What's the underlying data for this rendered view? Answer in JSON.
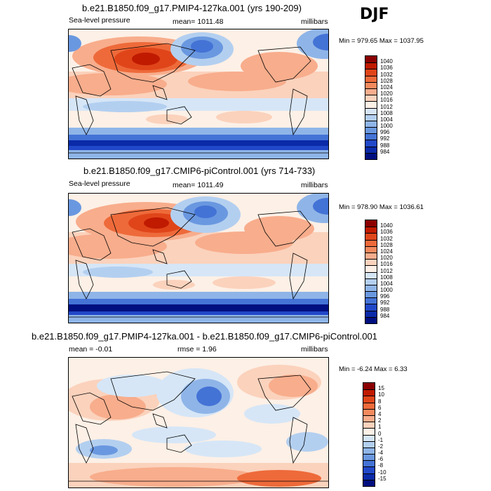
{
  "season": "DJF",
  "panels": [
    {
      "title": "b.e21.B1850.f09_g17.PMIP4-127ka.001 (yrs 190-209)",
      "left_label": "Sea-level pressure",
      "mean_label": "mean= 1011.48",
      "units": "millibars",
      "minmax": "Min = 979.65 Max = 1037.95",
      "colorbar_labels": [
        "1040",
        "1036",
        "1032",
        "1028",
        "1024",
        "1020",
        "1016",
        "1012",
        "1008",
        "1004",
        "1000",
        "996",
        "992",
        "988",
        "984"
      ]
    },
    {
      "title": "b.e21.B1850.f09_g17.CMIP6-piControl.001 (yrs 714-733)",
      "left_label": "Sea-level pressure",
      "mean_label": "mean= 1011.49",
      "units": "millibars",
      "minmax": "Min = 978.90 Max = 1036.61",
      "colorbar_labels": [
        "1040",
        "1036",
        "1032",
        "1028",
        "1024",
        "1020",
        "1016",
        "1012",
        "1008",
        "1004",
        "1000",
        "996",
        "992",
        "988",
        "984"
      ]
    },
    {
      "title": "b.e21.B1850.f09_g17.PMIP4-127ka.001 - b.e21.B1850.f09_g17.CMIP6-piControl.001",
      "left_label": "mean =  -0.01",
      "mean_label": "rmse =   1.96",
      "units": "millibars",
      "minmax": "Min =  -6.24 Max =   6.33",
      "colorbar_labels": [
        "15",
        "10",
        "8",
        "6",
        "4",
        "2",
        "1",
        "0",
        "-1",
        "-2",
        "-4",
        "-6",
        "-8",
        "-10",
        "-15"
      ]
    }
  ],
  "colors": {
    "abs_scale": [
      "#8b0000",
      "#c01a00",
      "#e0451a",
      "#ee6a3a",
      "#f48a5e",
      "#f8ad8c",
      "#fbd2bc",
      "#fdf0e6",
      "#d6e6f7",
      "#b3cff0",
      "#8fb5e8",
      "#6a98e0",
      "#4473d6",
      "#2148c8",
      "#0a2aa8",
      "#000f80"
    ],
    "diff_scale": [
      "#8b0000",
      "#c01a00",
      "#e0451a",
      "#ee6a3a",
      "#f48a5e",
      "#f8ad8c",
      "#fbd2bc",
      "#fdf0e6",
      "#d6e6f7",
      "#b3cff0",
      "#8fb5e8",
      "#6a98e0",
      "#4473d6",
      "#2148c8",
      "#0a2aa8",
      "#000f80"
    ]
  }
}
